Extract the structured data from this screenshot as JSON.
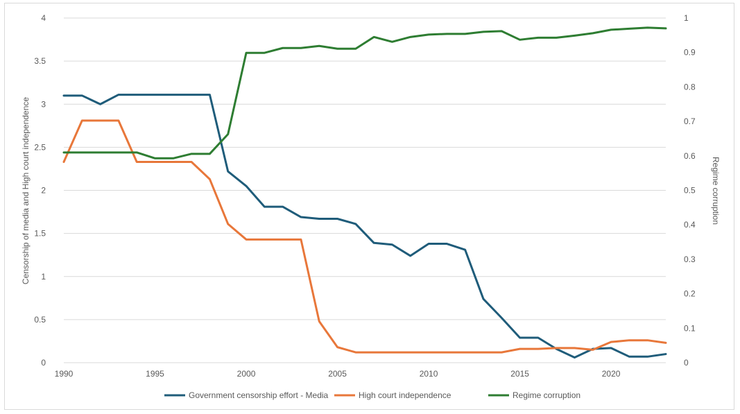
{
  "chart_data": {
    "type": "line",
    "title": "",
    "ylabel_left": "Censorship of media and High court independence",
    "ylabel_right": "Regime corruption",
    "xlabel": "",
    "x": [
      1990,
      1991,
      1992,
      1993,
      1994,
      1995,
      1996,
      1997,
      1998,
      1999,
      2000,
      2001,
      2002,
      2003,
      2004,
      2005,
      2006,
      2007,
      2008,
      2009,
      2010,
      2011,
      2012,
      2013,
      2014,
      2015,
      2016,
      2017,
      2018,
      2019,
      2020,
      2021,
      2022,
      2023
    ],
    "x_ticks": [
      "1990",
      "1995",
      "2000",
      "2005",
      "2010",
      "2015",
      "2020"
    ],
    "x_tick_values": [
      1990,
      1995,
      2000,
      2005,
      2010,
      2015,
      2020
    ],
    "xlim": [
      1990,
      2023
    ],
    "ylim_left": [
      0,
      4
    ],
    "ylim_right": [
      0,
      1
    ],
    "y_ticks_left": [
      "0",
      "0.5",
      "1",
      "1.5",
      "2",
      "2.5",
      "3",
      "3.5",
      "4"
    ],
    "y_ticks_right": [
      "0",
      "0.1",
      "0.2",
      "0.3",
      "0.4",
      "0.5",
      "0.6",
      "0.7",
      "0.8",
      "0.9",
      "1"
    ],
    "grid": true,
    "legend_position": "bottom",
    "series": [
      {
        "name": "Government censorship effort - Media",
        "axis": "left",
        "color": "#1f5c7a",
        "values": [
          3.1,
          3.1,
          3.0,
          3.11,
          3.11,
          3.11,
          3.11,
          3.11,
          3.11,
          2.22,
          2.05,
          1.81,
          1.81,
          1.69,
          1.67,
          1.67,
          1.61,
          1.39,
          1.37,
          1.24,
          1.38,
          1.38,
          1.31,
          0.74,
          0.52,
          0.29,
          0.29,
          0.16,
          0.06,
          0.16,
          0.17,
          0.07,
          0.07,
          0.1
        ]
      },
      {
        "name": "High court independence",
        "axis": "left",
        "color": "#e8773a",
        "values": [
          2.33,
          2.81,
          2.81,
          2.81,
          2.33,
          2.33,
          2.33,
          2.33,
          2.13,
          1.61,
          1.43,
          1.43,
          1.43,
          1.43,
          0.48,
          0.18,
          0.12,
          0.12,
          0.12,
          0.12,
          0.12,
          0.12,
          0.12,
          0.12,
          0.12,
          0.16,
          0.16,
          0.17,
          0.17,
          0.15,
          0.24,
          0.26,
          0.26,
          0.23
        ]
      },
      {
        "name": "Regime corruption",
        "axis": "right",
        "color": "#2e7d32",
        "values": [
          0.61,
          0.61,
          0.61,
          0.61,
          0.61,
          0.593,
          0.593,
          0.606,
          0.606,
          0.663,
          0.899,
          0.899,
          0.913,
          0.913,
          0.919,
          0.911,
          0.911,
          0.945,
          0.931,
          0.945,
          0.952,
          0.954,
          0.954,
          0.96,
          0.962,
          0.937,
          0.943,
          0.943,
          0.949,
          0.956,
          0.966,
          0.969,
          0.972,
          0.97
        ]
      }
    ]
  }
}
